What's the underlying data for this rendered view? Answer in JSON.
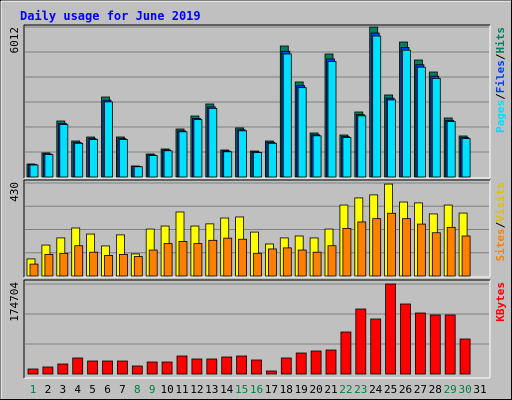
{
  "title": "Daily usage for June 2019",
  "chart_data": [
    {
      "type": "bar",
      "ylim": [
        0,
        6012
      ],
      "yticks": [
        6012
      ],
      "legend_separator": "/",
      "series": [
        {
          "name": "Hits",
          "color": "#008060",
          "values": [
            521,
            962,
            2244,
            1443,
            1603,
            3206,
            1603,
            441,
            922,
            1122,
            1924,
            2445,
            2926,
            1082,
            1964,
            1042,
            1443,
            5250,
            3808,
            1764,
            4930,
            1683,
            2605,
            6012,
            3287,
            5411,
            4689,
            4208,
            2365,
            1643,
            0
          ]
        },
        {
          "name": "Files",
          "color": "#0040ff",
          "values": [
            500,
            920,
            2150,
            1380,
            1540,
            3080,
            1540,
            420,
            880,
            1080,
            1850,
            2350,
            2810,
            1040,
            1890,
            1000,
            1390,
            5040,
            3660,
            1690,
            4730,
            1620,
            2500,
            5770,
            3160,
            5190,
            4500,
            4040,
            2270,
            1580,
            0
          ]
        },
        {
          "name": "Pages",
          "color": "#00e0ff",
          "values": [
            480,
            900,
            2100,
            1350,
            1500,
            3010,
            1500,
            410,
            860,
            1050,
            1810,
            2300,
            2750,
            1010,
            1850,
            980,
            1350,
            4930,
            3580,
            1650,
            4630,
            1580,
            2450,
            5650,
            3090,
            5080,
            4400,
            3950,
            2220,
            1540,
            0
          ]
        }
      ]
    },
    {
      "type": "bar",
      "ylim": [
        0,
        430
      ],
      "yticks": [
        430
      ],
      "legend_separator": "/",
      "series": [
        {
          "name": "Visits",
          "color": "#ffff00",
          "values": [
            79,
            143,
            176,
            222,
            194,
            139,
            190,
            102,
            217,
            231,
            296,
            231,
            241,
            268,
            273,
            203,
            148,
            176,
            185,
            176,
            217,
            328,
            361,
            375,
            425,
            342,
            338,
            287,
            328,
            291,
            0
          ]
        },
        {
          "name": "Sites",
          "color": "#ff8000",
          "values": [
            55,
            100,
            105,
            140,
            110,
            95,
            100,
            90,
            120,
            150,
            160,
            150,
            165,
            175,
            170,
            105,
            125,
            130,
            120,
            110,
            140,
            220,
            250,
            265,
            290,
            265,
            240,
            200,
            225,
            185,
            0
          ]
        }
      ]
    },
    {
      "type": "bar",
      "ylim": [
        0,
        174704
      ],
      "yticks": [
        174704
      ],
      "legend_separator": "/",
      "categories": [
        "1",
        "2",
        "3",
        "4",
        "5",
        "6",
        "7",
        "8",
        "9",
        "10",
        "11",
        "12",
        "13",
        "14",
        "15",
        "16",
        "17",
        "18",
        "19",
        "20",
        "21",
        "22",
        "23",
        "24",
        "25",
        "26",
        "27",
        "28",
        "29",
        "30",
        "31"
      ],
      "category_colors": [
        "#008040",
        "#000000",
        "#000000",
        "#000000",
        "#000000",
        "#000000",
        "#000000",
        "#008040",
        "#008040",
        "#000000",
        "#000000",
        "#000000",
        "#000000",
        "#000000",
        "#008040",
        "#008040",
        "#000000",
        "#000000",
        "#000000",
        "#000000",
        "#000000",
        "#008040",
        "#008040",
        "#000000",
        "#000000",
        "#000000",
        "#000000",
        "#000000",
        "#008040",
        "#008040",
        "#000000"
      ],
      "series": [
        {
          "name": "KBytes",
          "color": "#ff0000",
          "values": [
            9705,
            13590,
            19410,
            31060,
            25230,
            25230,
            25230,
            15530,
            23290,
            23290,
            34940,
            29120,
            29120,
            33000,
            34940,
            27170,
            5820,
            31060,
            40760,
            44640,
            46580,
            81520,
            126170,
            106760,
            174704,
            135870,
            118400,
            114520,
            114520,
            67940,
            0
          ]
        }
      ]
    }
  ]
}
